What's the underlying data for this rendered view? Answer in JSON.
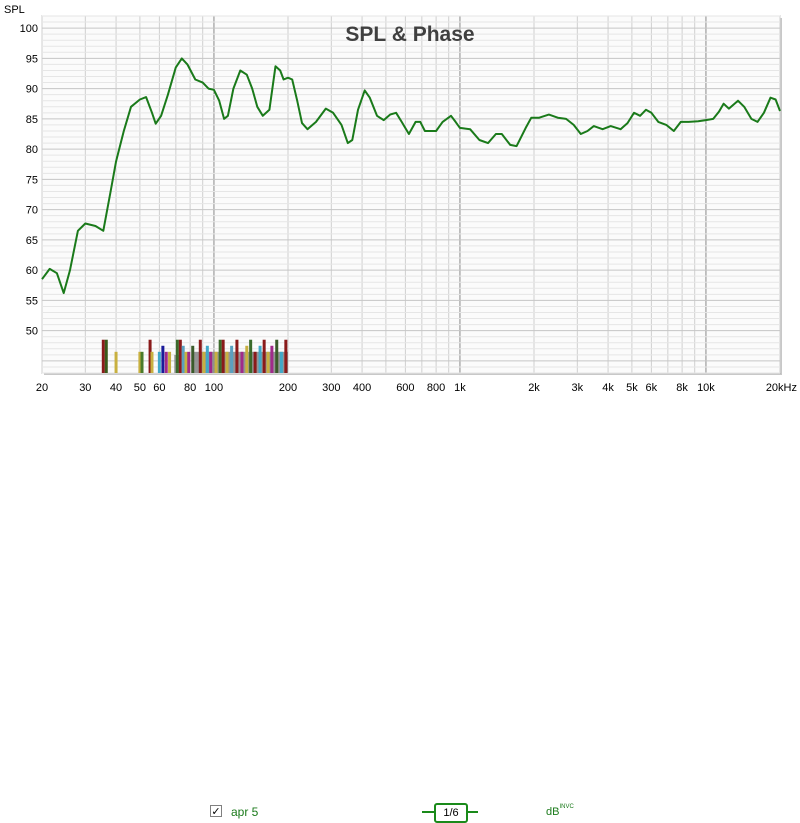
{
  "chart_data": {
    "type": "line",
    "title": "SPL & Phase",
    "ylabel": "SPL",
    "xlabel": "",
    "x_scale": "log",
    "xlim": [
      20,
      20000
    ],
    "ylim": [
      43,
      102
    ],
    "grid": true,
    "x_ticks": [
      {
        "v": 20,
        "label": "20"
      },
      {
        "v": 30,
        "label": "30"
      },
      {
        "v": 40,
        "label": "40"
      },
      {
        "v": 50,
        "label": "50"
      },
      {
        "v": 60,
        "label": "60"
      },
      {
        "v": 80,
        "label": "80"
      },
      {
        "v": 100,
        "label": "100"
      },
      {
        "v": 200,
        "label": "200"
      },
      {
        "v": 300,
        "label": "300"
      },
      {
        "v": 400,
        "label": "400"
      },
      {
        "v": 600,
        "label": "600"
      },
      {
        "v": 800,
        "label": "800"
      },
      {
        "v": 1000,
        "label": "1k"
      },
      {
        "v": 2000,
        "label": "2k"
      },
      {
        "v": 3000,
        "label": "3k"
      },
      {
        "v": 4000,
        "label": "4k"
      },
      {
        "v": 5000,
        "label": "5k"
      },
      {
        "v": 6000,
        "label": "6k"
      },
      {
        "v": 8000,
        "label": "8k"
      },
      {
        "v": 10000,
        "label": "10k"
      },
      {
        "v": 20000,
        "label": "20kHz"
      }
    ],
    "y_ticks": [
      50,
      55,
      60,
      65,
      70,
      75,
      80,
      85,
      90,
      95,
      100
    ],
    "series": [
      {
        "name": "apr 5",
        "color": "#1a7a1a",
        "points": [
          [
            20,
            58.5
          ],
          [
            21.5,
            60.2
          ],
          [
            23,
            59.5
          ],
          [
            24.5,
            56.2
          ],
          [
            26,
            60
          ],
          [
            28,
            66.5
          ],
          [
            30,
            67.7
          ],
          [
            33,
            67.3
          ],
          [
            35.5,
            66.5
          ],
          [
            38,
            73
          ],
          [
            40,
            78
          ],
          [
            43,
            83
          ],
          [
            46,
            87
          ],
          [
            50,
            88.2
          ],
          [
            53,
            88.6
          ],
          [
            56,
            86
          ],
          [
            58,
            84.2
          ],
          [
            61,
            85.5
          ],
          [
            65,
            89
          ],
          [
            70,
            93.5
          ],
          [
            74,
            95
          ],
          [
            78,
            94
          ],
          [
            84,
            91.5
          ],
          [
            90,
            91
          ],
          [
            95,
            90
          ],
          [
            100,
            89.8
          ],
          [
            105,
            88
          ],
          [
            110,
            85
          ],
          [
            114,
            85.5
          ],
          [
            120,
            90
          ],
          [
            128,
            93
          ],
          [
            136,
            92.3
          ],
          [
            143,
            90
          ],
          [
            150,
            87
          ],
          [
            158,
            85.5
          ],
          [
            168,
            86.5
          ],
          [
            178,
            93.7
          ],
          [
            186,
            93
          ],
          [
            192,
            91.5
          ],
          [
            200,
            91.8
          ],
          [
            208,
            91.5
          ],
          [
            218,
            88
          ],
          [
            228,
            84.3
          ],
          [
            240,
            83.3
          ],
          [
            260,
            84.5
          ],
          [
            285,
            86.7
          ],
          [
            305,
            86
          ],
          [
            330,
            84
          ],
          [
            350,
            81
          ],
          [
            365,
            81.5
          ],
          [
            385,
            86.5
          ],
          [
            410,
            89.7
          ],
          [
            430,
            88.5
          ],
          [
            460,
            85.5
          ],
          [
            490,
            84.8
          ],
          [
            520,
            85.7
          ],
          [
            550,
            86
          ],
          [
            580,
            84.5
          ],
          [
            620,
            82.5
          ],
          [
            660,
            84.5
          ],
          [
            690,
            84.5
          ],
          [
            720,
            83
          ],
          [
            800,
            83
          ],
          [
            850,
            84.5
          ],
          [
            920,
            85.5
          ],
          [
            960,
            84.5
          ],
          [
            1000,
            83.5
          ],
          [
            1100,
            83.3
          ],
          [
            1200,
            81.5
          ],
          [
            1300,
            81
          ],
          [
            1400,
            82.5
          ],
          [
            1480,
            82.5
          ],
          [
            1600,
            80.7
          ],
          [
            1700,
            80.5
          ],
          [
            1850,
            83.5
          ],
          [
            1950,
            85.2
          ],
          [
            2100,
            85.2
          ],
          [
            2300,
            85.7
          ],
          [
            2500,
            85.2
          ],
          [
            2700,
            85
          ],
          [
            2900,
            84
          ],
          [
            3100,
            82.5
          ],
          [
            3300,
            83
          ],
          [
            3500,
            83.8
          ],
          [
            3800,
            83.3
          ],
          [
            4100,
            83.8
          ],
          [
            4500,
            83.3
          ],
          [
            4800,
            84.3
          ],
          [
            5100,
            86
          ],
          [
            5400,
            85.5
          ],
          [
            5700,
            86.5
          ],
          [
            6000,
            86
          ],
          [
            6400,
            84.5
          ],
          [
            6900,
            84
          ],
          [
            7400,
            83
          ],
          [
            7900,
            84.5
          ],
          [
            8500,
            84.5
          ],
          [
            9300,
            84.6
          ],
          [
            10000,
            84.8
          ],
          [
            10700,
            85
          ],
          [
            11300,
            86.2
          ],
          [
            11800,
            87.5
          ],
          [
            12400,
            86.7
          ],
          [
            13500,
            88
          ],
          [
            14300,
            87
          ],
          [
            15300,
            85
          ],
          [
            16200,
            84.5
          ],
          [
            17200,
            86
          ],
          [
            18300,
            88.5
          ],
          [
            19200,
            88.2
          ],
          [
            20000,
            86.3
          ]
        ]
      }
    ],
    "bars": [
      {
        "f": 35.5,
        "top": 48.5,
        "color": "#8a1a1a"
      },
      {
        "f": 36.5,
        "top": 48.5,
        "color": "#3a5a1a"
      },
      {
        "f": 40,
        "top": 46.5,
        "color": "#c8b040"
      },
      {
        "f": 50,
        "top": 46.5,
        "color": "#c8b040"
      },
      {
        "f": 51,
        "top": 46.5,
        "color": "#4a7a2a"
      },
      {
        "f": 55,
        "top": 48.5,
        "color": "#8a1a1a"
      },
      {
        "f": 56,
        "top": 46.5,
        "color": "#c8b040"
      },
      {
        "f": 60,
        "top": 46.5,
        "color": "#40a8c8"
      },
      {
        "f": 62,
        "top": 47.5,
        "color": "#1a1a9a"
      },
      {
        "f": 64,
        "top": 46.5,
        "color": "#a02a8a"
      },
      {
        "f": 66,
        "top": 46.5,
        "color": "#c8b040"
      },
      {
        "f": 71,
        "top": 48.5,
        "color": "#3a6a2a"
      },
      {
        "f": 73,
        "top": 48.5,
        "color": "#8a1a1a"
      },
      {
        "f": 75,
        "top": 47.5,
        "color": "#5aa0c0"
      },
      {
        "f": 77,
        "top": 46.5,
        "color": "#c8b040"
      },
      {
        "f": 79,
        "top": 46.5,
        "color": "#a02a8a"
      },
      {
        "f": 82,
        "top": 47.5,
        "color": "#3a5a2a"
      },
      {
        "f": 88,
        "top": 48.5,
        "color": "#8a1a1a"
      },
      {
        "f": 91,
        "top": 46.5,
        "color": "#c8b040"
      },
      {
        "f": 94,
        "top": 47.5,
        "color": "#40a8c8"
      },
      {
        "f": 97,
        "top": 46.5,
        "color": "#a02a8a"
      },
      {
        "f": 102,
        "top": 46.5,
        "color": "#c8b040"
      },
      {
        "f": 106,
        "top": 48.5,
        "color": "#3a6a2a"
      },
      {
        "f": 109,
        "top": 48.5,
        "color": "#8a1a1a"
      },
      {
        "f": 113,
        "top": 46.5,
        "color": "#c8b040"
      },
      {
        "f": 118,
        "top": 47.5,
        "color": "#5aa0c0"
      },
      {
        "f": 124,
        "top": 48.5,
        "color": "#8a1a1a"
      },
      {
        "f": 130,
        "top": 46.5,
        "color": "#a02a8a"
      },
      {
        "f": 136,
        "top": 47.5,
        "color": "#c8b040"
      },
      {
        "f": 141,
        "top": 48.5,
        "color": "#3a6a2a"
      },
      {
        "f": 147,
        "top": 46.5,
        "color": "#8a1a1a"
      },
      {
        "f": 154,
        "top": 47.5,
        "color": "#40a8c8"
      },
      {
        "f": 160,
        "top": 48.5,
        "color": "#8a1a1a"
      },
      {
        "f": 166,
        "top": 46.5,
        "color": "#c8b040"
      },
      {
        "f": 172,
        "top": 47.5,
        "color": "#a02a8a"
      },
      {
        "f": 180,
        "top": 48.5,
        "color": "#3a5a2a"
      },
      {
        "f": 188,
        "top": 46.5,
        "color": "#40a8c8"
      },
      {
        "f": 196,
        "top": 48.5,
        "color": "#8a1a1a"
      }
    ],
    "bars_gray": [
      {
        "f1": 69,
        "f2": 73,
        "top": 46
      },
      {
        "f1": 83,
        "f2": 200,
        "top": 46.5
      }
    ]
  },
  "footer": {
    "legend_label": "apr 5",
    "checkbox_mark": "✓",
    "smoothing": "1/6",
    "units": "dB",
    "units_sup": "INVC"
  }
}
